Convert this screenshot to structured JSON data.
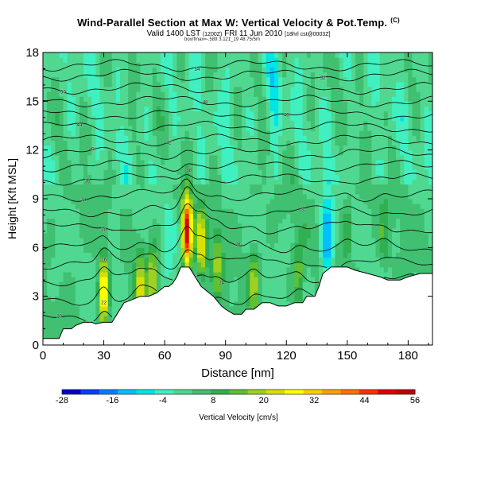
{
  "header": {
    "title": "Wind-Parallel Section at Max W: Vertical Velocity & Pot.Temp.",
    "title_mark": "(C)",
    "subtitle_main": "Valid 1400 LST",
    "subtitle_small1": "(1200Z)",
    "subtitle_date": "FRI 11 Jun 2010",
    "subtitle_small2": "[18hrl cst@0003Z]",
    "subsub": "box/fmax=-.589 3.121_19 48.75/5m"
  },
  "chart_data": {
    "type": "heatmap",
    "title": "Wind-Parallel Section at Max W: Vertical Velocity & Pot.Temp.",
    "xlabel": "Distance [nm]",
    "ylabel": "Height [Kft MSL]",
    "xlim": [
      0,
      192
    ],
    "ylim": [
      0,
      18
    ],
    "xticks": [
      0,
      30,
      60,
      90,
      120,
      150,
      180
    ],
    "yticks": [
      0,
      3,
      6,
      9,
      12,
      15,
      18
    ],
    "colorbar": {
      "label": "Vertical Velocity [cm/s]",
      "range": [
        -28,
        56
      ],
      "tick_values": [
        -28,
        -16,
        -4,
        8,
        20,
        32,
        44,
        56
      ],
      "colors": [
        "#0000c8",
        "#0040ff",
        "#0080ff",
        "#00bfff",
        "#00e5e5",
        "#40f0c0",
        "#50d890",
        "#40c070",
        "#30b050",
        "#60c030",
        "#a0d020",
        "#d8e000",
        "#ffff00",
        "#ffd000",
        "#ffa000",
        "#ff7000",
        "#ff3000",
        "#e00000",
        "#c00000"
      ]
    },
    "terrain_kft": [
      [
        0,
        0.4
      ],
      [
        8,
        0.4
      ],
      [
        10,
        1.0
      ],
      [
        14,
        1.0
      ],
      [
        16,
        1.2
      ],
      [
        20,
        1.4
      ],
      [
        24,
        1.4
      ],
      [
        26,
        1.3
      ],
      [
        30,
        1.4
      ],
      [
        34,
        1.4
      ],
      [
        36,
        1.8
      ],
      [
        40,
        2.6
      ],
      [
        44,
        2.8
      ],
      [
        48,
        3.0
      ],
      [
        52,
        3.0
      ],
      [
        56,
        3.2
      ],
      [
        60,
        3.6
      ],
      [
        62,
        3.6
      ],
      [
        64,
        3.8
      ],
      [
        66,
        4.2
      ],
      [
        68,
        4.8
      ],
      [
        72,
        4.8
      ],
      [
        74,
        4.4
      ],
      [
        78,
        3.6
      ],
      [
        80,
        3.4
      ],
      [
        84,
        3.0
      ],
      [
        88,
        2.4
      ],
      [
        90,
        2.2
      ],
      [
        94,
        1.9
      ],
      [
        98,
        1.9
      ],
      [
        100,
        2.2
      ],
      [
        104,
        2.2
      ],
      [
        108,
        2.6
      ],
      [
        112,
        2.6
      ],
      [
        116,
        2.4
      ],
      [
        120,
        2.4
      ],
      [
        124,
        2.6
      ],
      [
        128,
        2.6
      ],
      [
        130,
        3.0
      ],
      [
        134,
        3.0
      ],
      [
        136,
        3.6
      ],
      [
        138,
        4.4
      ],
      [
        142,
        4.8
      ],
      [
        150,
        4.8
      ],
      [
        154,
        4.6
      ],
      [
        160,
        4.4
      ],
      [
        166,
        4.2
      ],
      [
        170,
        4.0
      ],
      [
        176,
        4.0
      ],
      [
        180,
        4.2
      ],
      [
        186,
        4.4
      ],
      [
        192,
        4.4
      ]
    ],
    "theta_contours": [
      {
        "label": "20",
        "base_kft": 1.6,
        "label_x": 8
      },
      {
        "label": "22",
        "base_kft": 2.8,
        "label_x": 30
      },
      {
        "label": "24",
        "base_kft": 4.0,
        "label_x": 88
      },
      {
        "label": "26",
        "base_kft": 5.0,
        "label_x": 30
      },
      {
        "label": "28",
        "base_kft": 6.0,
        "label_x": 96
      },
      {
        "label": "30",
        "base_kft": 7.2,
        "label_x": 30
      },
      {
        "label": "32",
        "base_kft": 8.2,
        "label_x": 128
      },
      {
        "label": "34",
        "base_kft": 9.2,
        "label_x": 20
      },
      {
        "label": "36",
        "base_kft": 10.2,
        "label_x": 22
      },
      {
        "label": "38",
        "base_kft": 11.0,
        "label_x": 72
      },
      {
        "label": "40",
        "base_kft": 11.8,
        "label_x": 24
      },
      {
        "label": "42",
        "base_kft": 12.6,
        "label_x": 62
      },
      {
        "label": "44",
        "base_kft": 13.4,
        "label_x": 18
      },
      {
        "label": "46",
        "base_kft": 14.2,
        "label_x": 120
      },
      {
        "label": "48",
        "base_kft": 15.0,
        "label_x": 80
      },
      {
        "label": "50",
        "base_kft": 15.8,
        "label_x": 10
      },
      {
        "label": "52",
        "base_kft": 16.6,
        "label_x": 138
      },
      {
        "label": "54",
        "base_kft": 17.2,
        "label_x": 76
      }
    ],
    "updraft_cores": [
      {
        "x": 30,
        "z": 3.2,
        "w": 32
      },
      {
        "x": 48,
        "z": 3.6,
        "w": 20
      },
      {
        "x": 54,
        "z": 4.2,
        "w": 20
      },
      {
        "x": 71,
        "z": 7.0,
        "w": 50
      },
      {
        "x": 78,
        "z": 6.2,
        "w": 24
      },
      {
        "x": 86,
        "z": 5.2,
        "w": 16
      },
      {
        "x": 104,
        "z": 4.0,
        "w": 16
      },
      {
        "x": 126,
        "z": 4.2,
        "w": 14
      },
      {
        "x": 150,
        "z": 7.0,
        "w": 10
      },
      {
        "x": 168,
        "z": 6.8,
        "w": 10
      }
    ],
    "downdraft_cores": [
      {
        "x": 140,
        "z": 6.5,
        "w": -18
      },
      {
        "x": 114,
        "z": 15.0,
        "w": -8
      },
      {
        "x": 92,
        "z": 16.0,
        "w": -6
      },
      {
        "x": 62,
        "z": 7.0,
        "w": -6
      },
      {
        "x": 36,
        "z": 6.2,
        "w": -6
      }
    ]
  }
}
